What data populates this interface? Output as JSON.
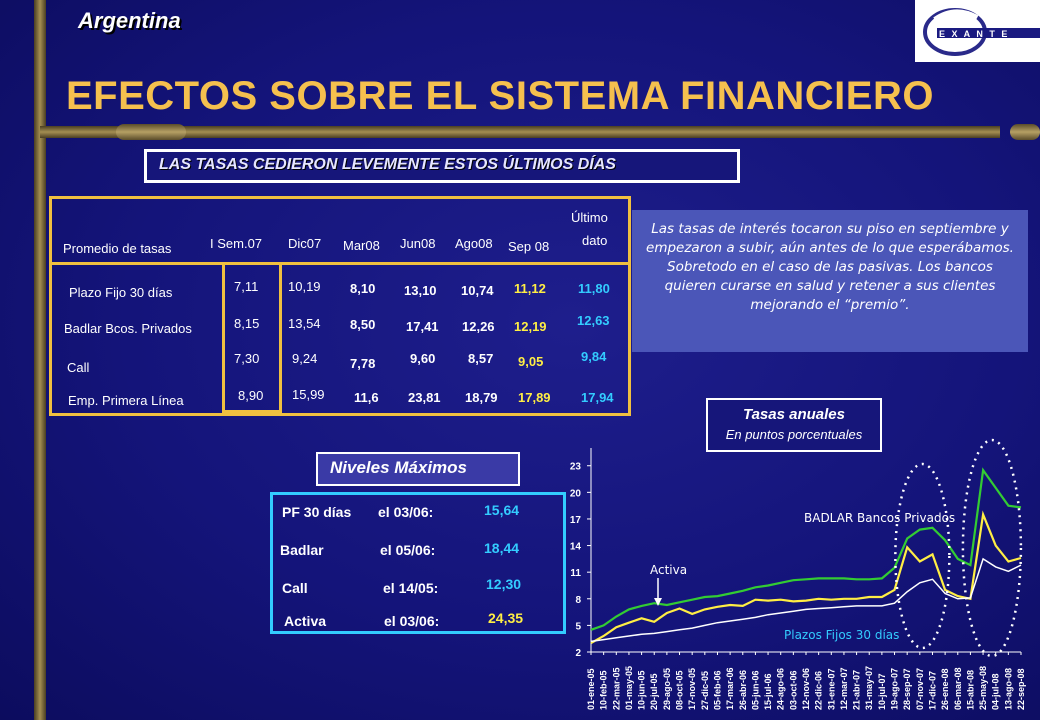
{
  "header": {
    "country": "Argentina",
    "logo_text": "E X A N T E",
    "title": "EFECTOS SOBRE EL SISTEMA FINANCIERO",
    "subtitle": "LAS TASAS CEDIERON LEVEMENTE ESTOS ÚLTIMOS DÍAS"
  },
  "table": {
    "header_label": "Promedio de tasas",
    "columns": [
      "I Sem.07",
      "Dic07",
      "Mar08",
      "Jun08",
      "Ago08",
      "Sep 08",
      "Último dato"
    ],
    "last_col_line1": "Último",
    "last_col_line2": "dato",
    "rows": [
      {
        "label": "Plazo Fijo 30 días",
        "values": [
          "7,11",
          "10,19",
          "8,10",
          "13,10",
          "10,74",
          "11,12",
          "11,80"
        ]
      },
      {
        "label": "Badlar Bcos. Privados",
        "values": [
          "8,15",
          "13,54",
          "8,50",
          "17,41",
          "12,26",
          "12,19",
          "12,63"
        ]
      },
      {
        "label": "Call",
        "values": [
          "7,30",
          "9,24",
          "7,78",
          "9,60",
          "8,57",
          "9,05",
          "9,84"
        ]
      },
      {
        "label": "Emp. Primera Línea",
        "values": [
          "8,90",
          "15,99",
          "11,6",
          "23,81",
          "18,79",
          "17,89",
          "17,94"
        ]
      }
    ]
  },
  "note": "Las tasas de interés tocaron su piso en septiembre y empezaron a subir, aún antes de lo que esperábamos. Sobretodo en el caso de las pasivas. Los bancos quieren curarse en salud y retener a sus clientes mejorando el “premio”.",
  "niveles": {
    "title": "Niveles Máximos",
    "items": [
      {
        "name": "PF 30 días",
        "date": "el 03/06:",
        "value": "15,64"
      },
      {
        "name": "Badlar",
        "date": "el 05/06:",
        "value": "18,44"
      },
      {
        "name": "Call",
        "date": "el 14/05:",
        "value": "12,30"
      },
      {
        "name": "Activa",
        "date": "el 03/06:",
        "value": "24,35"
      }
    ]
  },
  "tasas": {
    "title": "Tasas anuales",
    "subtitle": "En puntos porcentuales"
  },
  "colors": {
    "title": "#f5c04e",
    "table_border": "#f0c040",
    "niveles_border": "#33ccff",
    "activa": "#33cc33",
    "badlar": "#ffee44",
    "plazo_fijo": "#ffffff",
    "call": "#d0d0ff"
  },
  "chart_data": {
    "type": "line",
    "yticks": [
      "2",
      "5",
      "8",
      "11",
      "14",
      "17",
      "20",
      "23"
    ],
    "ylim": [
      2,
      25
    ],
    "x": [
      "01-ene-05",
      "10-feb-05",
      "22-mar-05",
      "01-may-05",
      "10-jun-05",
      "20-jul-05",
      "29-ago-05",
      "08-oct-05",
      "17-nov-05",
      "27-dic-05",
      "05-feb-06",
      "17-mar-06",
      "26-abr-06",
      "05-jun-06",
      "15-jul-06",
      "24-ago-06",
      "03-oct-06",
      "12-nov-06",
      "22-dic-06",
      "31-ene-07",
      "12-mar-07",
      "21-abr-07",
      "31-may-07",
      "10-jul-07",
      "19-ago-07",
      "28-sep-07",
      "07-nov-07",
      "17-dic-07",
      "26-ene-08",
      "06-mar-08",
      "15-abr-08",
      "25-may-08",
      "04-jul-08",
      "13-ago-08",
      "22-sep-08"
    ],
    "annotations": [
      "BADLAR Bancos Privados",
      "Activa",
      "Plazos Fijos 30 días"
    ],
    "series": [
      {
        "name": "Activa",
        "values": [
          4.5,
          5.0,
          6.0,
          6.8,
          7.2,
          7.5,
          7.3,
          7.6,
          7.9,
          8.2,
          8.3,
          8.6,
          8.9,
          9.3,
          9.5,
          9.8,
          10.1,
          10.2,
          10.3,
          10.3,
          10.3,
          10.2,
          10.2,
          10.3,
          11.5,
          14.8,
          15.8,
          16.0,
          14.6,
          12.5,
          11.8,
          22.5,
          20.5,
          18.5,
          18.3
        ]
      },
      {
        "name": "BADLAR Bancos Privados",
        "values": [
          3.0,
          3.8,
          4.8,
          5.3,
          5.8,
          5.4,
          6.4,
          6.9,
          6.3,
          6.8,
          7.1,
          7.3,
          7.2,
          7.9,
          7.8,
          7.9,
          7.7,
          7.8,
          8.0,
          7.9,
          8.0,
          8.0,
          8.2,
          8.2,
          9.0,
          13.8,
          12.2,
          13.0,
          9.0,
          8.3,
          8.0,
          17.5,
          14.0,
          12.2,
          12.6
        ]
      },
      {
        "name": "Plazos Fijos 30 días",
        "values": [
          3.2,
          3.4,
          3.6,
          3.8,
          4.0,
          4.1,
          4.3,
          4.5,
          4.7,
          5.0,
          5.3,
          5.5,
          5.7,
          5.9,
          6.2,
          6.4,
          6.6,
          6.8,
          6.9,
          7.0,
          7.1,
          7.2,
          7.2,
          7.2,
          7.5,
          8.8,
          9.8,
          10.2,
          8.6,
          8.0,
          8.1,
          12.5,
          11.6,
          11.1,
          11.8
        ]
      }
    ]
  }
}
